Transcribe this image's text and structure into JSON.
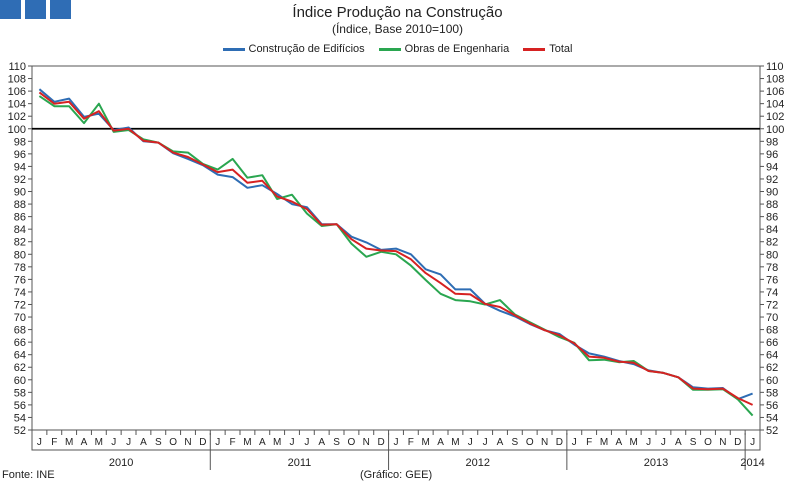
{
  "chart_data": {
    "type": "line",
    "title": "Índice Produção na Construção",
    "subtitle": "(Índice, Base 2010=100)",
    "yticks": [
      52,
      54,
      56,
      58,
      60,
      62,
      64,
      66,
      68,
      70,
      72,
      74,
      76,
      78,
      80,
      82,
      84,
      86,
      88,
      90,
      92,
      94,
      96,
      98,
      100,
      102,
      104,
      106,
      108,
      110
    ],
    "ylim": [
      52,
      110
    ],
    "reference_line": 100,
    "months": [
      "J",
      "F",
      "M",
      "A",
      "M",
      "J",
      "J",
      "A",
      "S",
      "O",
      "N",
      "D",
      "J",
      "F",
      "M",
      "A",
      "M",
      "J",
      "J",
      "A",
      "S",
      "O",
      "N",
      "D",
      "J",
      "F",
      "M",
      "A",
      "M",
      "J",
      "J",
      "A",
      "S",
      "O",
      "N",
      "D",
      "J",
      "F",
      "M",
      "A",
      "M",
      "J",
      "J",
      "A",
      "S",
      "O",
      "N",
      "D",
      "J"
    ],
    "years": [
      {
        "label": "2010",
        "start": 0,
        "count": 12
      },
      {
        "label": "2011",
        "start": 12,
        "count": 12
      },
      {
        "label": "2012",
        "start": 24,
        "count": 12
      },
      {
        "label": "2013",
        "start": 36,
        "count": 12
      },
      {
        "label": "2014",
        "start": 48,
        "count": 1
      }
    ],
    "series": [
      {
        "name": "Construção de Edifícios",
        "color": "#2e6db4",
        "values": [
          106.3,
          104.3,
          104.8,
          101.9,
          102.4,
          99.8,
          100.2,
          98.0,
          97.8,
          96.1,
          95.2,
          94.2,
          92.7,
          92.3,
          90.6,
          91.0,
          89.6,
          88.0,
          87.5,
          84.8,
          84.8,
          82.8,
          81.9,
          80.7,
          80.9,
          80.0,
          77.6,
          76.8,
          74.4,
          74.4,
          72.1,
          71.0,
          70.1,
          68.9,
          67.9,
          67.3,
          65.6,
          64.2,
          63.7,
          63.0,
          62.5,
          61.5,
          61.1,
          60.4,
          58.8,
          58.6,
          58.7,
          56.9,
          57.8
        ]
      },
      {
        "name": "Obras de Engenharia",
        "color": "#2aa650",
        "values": [
          105.2,
          103.6,
          103.6,
          100.9,
          104.0,
          99.5,
          99.8,
          98.3,
          97.8,
          96.4,
          96.2,
          94.4,
          93.5,
          95.2,
          92.2,
          92.6,
          88.8,
          89.5,
          86.5,
          84.5,
          84.8,
          81.7,
          79.6,
          80.4,
          80.0,
          78.2,
          75.9,
          73.7,
          72.7,
          72.5,
          72.0,
          72.7,
          70.4,
          69.2,
          68.0,
          66.8,
          65.9,
          63.1,
          63.2,
          62.8,
          63.0,
          61.4,
          61.1,
          60.4,
          58.4,
          58.4,
          58.5,
          56.9,
          54.3
        ]
      },
      {
        "name": "Total",
        "color": "#d62222",
        "values": [
          105.8,
          104.0,
          104.3,
          101.6,
          102.8,
          99.7,
          100.0,
          98.1,
          97.8,
          96.2,
          95.5,
          94.3,
          93.1,
          93.5,
          91.4,
          91.7,
          89.2,
          88.4,
          87.2,
          84.7,
          84.8,
          82.4,
          80.9,
          80.6,
          80.5,
          79.2,
          77.0,
          75.4,
          73.7,
          73.6,
          72.1,
          71.6,
          70.3,
          69.0,
          67.9,
          67.1,
          65.8,
          63.7,
          63.5,
          62.9,
          62.7,
          61.4,
          61.1,
          60.4,
          58.6,
          58.5,
          58.6,
          57.1,
          56.0
        ]
      }
    ]
  },
  "footer": {
    "source": "Fonte: INE",
    "credit": "(Gráfico: GEE)"
  }
}
